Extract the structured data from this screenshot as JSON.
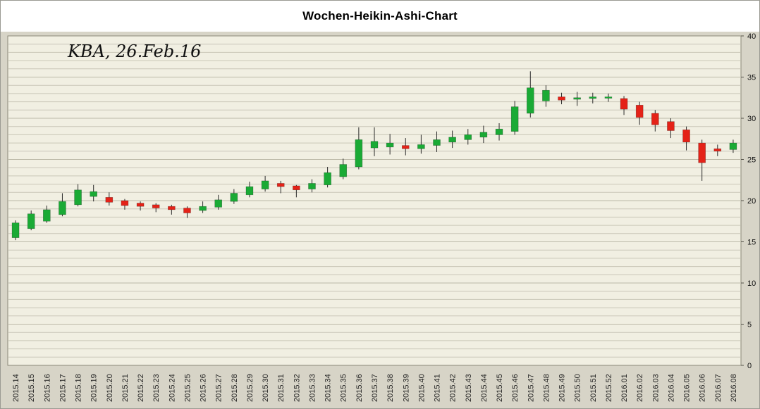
{
  "chart": {
    "title": "Wochen-Heikin-Ashi-Chart",
    "annotation": "KBA, 26.Feb.16"
  },
  "chart_data": {
    "type": "candlestick",
    "subtype": "heikin-ashi-weekly",
    "title": "Wochen-Heikin-Ashi-Chart",
    "annotation": "KBA, 26.Feb.16",
    "xlabel": "",
    "ylabel": "",
    "ylim": [
      0,
      40
    ],
    "y_ticks": [
      0,
      5,
      10,
      15,
      20,
      25,
      30,
      35,
      40
    ],
    "y_minor_step": 1,
    "grid": "horizontal",
    "legend_position": "none",
    "up_color": "#1aaa35",
    "down_color": "#e42218",
    "wick_color": "#2b2b2b",
    "plot_bg": "#f1efe2",
    "outer_bg": "#d7d4c7",
    "grid_color": "#c9c6b7",
    "grid_major_color": "#bcb9a8",
    "categories": [
      "2015.14",
      "2015.15",
      "2015.16",
      "2015.17",
      "2015.18",
      "2015.19",
      "2015.20",
      "2015.21",
      "2015.22",
      "2015.23",
      "2015.24",
      "2015.25",
      "2015.26",
      "2015.27",
      "2015.28",
      "2015.29",
      "2015.30",
      "2015.31",
      "2015.32",
      "2015.33",
      "2015.34",
      "2015.35",
      "2015.36",
      "2015.37",
      "2015.38",
      "2015.39",
      "2015.40",
      "2015.41",
      "2015.42",
      "2015.43",
      "2015.44",
      "2015.45",
      "2015.46",
      "2015.47",
      "2015.48",
      "2015.49",
      "2015.50",
      "2015.51",
      "2015.52",
      "2016.01",
      "2016.02",
      "2016.03",
      "2016.04",
      "2016.05",
      "2016.06",
      "2016.07",
      "2016.08"
    ],
    "candles_ohlc_format": [
      "open",
      "high",
      "low",
      "close"
    ],
    "candles": [
      [
        15.5,
        17.6,
        15.2,
        17.3
      ],
      [
        16.6,
        18.8,
        16.4,
        18.4
      ],
      [
        17.5,
        19.4,
        17.3,
        18.9
      ],
      [
        18.3,
        20.9,
        18.1,
        19.9
      ],
      [
        19.5,
        22.0,
        19.3,
        21.3
      ],
      [
        20.5,
        21.9,
        19.9,
        21.1
      ],
      [
        20.4,
        21.0,
        19.4,
        19.8
      ],
      [
        20.0,
        20.2,
        18.9,
        19.4
      ],
      [
        19.7,
        19.9,
        18.8,
        19.3
      ],
      [
        19.5,
        19.7,
        18.6,
        19.1
      ],
      [
        19.3,
        19.5,
        18.3,
        18.9
      ],
      [
        19.1,
        19.3,
        17.9,
        18.5
      ],
      [
        18.8,
        19.9,
        18.5,
        19.3
      ],
      [
        19.2,
        20.7,
        18.9,
        20.1
      ],
      [
        19.9,
        21.4,
        19.6,
        20.9
      ],
      [
        20.7,
        22.3,
        20.4,
        21.7
      ],
      [
        21.4,
        23.0,
        21.1,
        22.4
      ],
      [
        22.1,
        22.4,
        20.9,
        21.7
      ],
      [
        21.8,
        21.9,
        20.4,
        21.3
      ],
      [
        21.4,
        22.6,
        21.0,
        22.1
      ],
      [
        21.9,
        24.1,
        21.6,
        23.4
      ],
      [
        22.9,
        25.1,
        22.6,
        24.4
      ],
      [
        24.1,
        28.9,
        23.8,
        27.4
      ],
      [
        26.4,
        28.9,
        25.4,
        27.2
      ],
      [
        26.5,
        28.1,
        25.6,
        27.0
      ],
      [
        26.7,
        27.6,
        25.5,
        26.3
      ],
      [
        26.3,
        28.0,
        25.7,
        26.8
      ],
      [
        26.7,
        28.4,
        25.9,
        27.4
      ],
      [
        27.1,
        28.5,
        26.4,
        27.7
      ],
      [
        27.4,
        28.7,
        26.8,
        28.0
      ],
      [
        27.7,
        29.1,
        27.0,
        28.3
      ],
      [
        28.0,
        29.4,
        27.3,
        28.7
      ],
      [
        28.4,
        32.1,
        28.0,
        31.4
      ],
      [
        30.6,
        35.7,
        30.1,
        33.7
      ],
      [
        32.1,
        34.0,
        31.4,
        33.4
      ],
      [
        32.6,
        33.1,
        31.7,
        32.2
      ],
      [
        32.3,
        33.2,
        31.5,
        32.5
      ],
      [
        32.4,
        33.1,
        31.8,
        32.6
      ],
      [
        32.5,
        33.0,
        32.0,
        32.6
      ],
      [
        32.4,
        32.7,
        30.4,
        31.1
      ],
      [
        31.6,
        32.0,
        29.2,
        30.1
      ],
      [
        30.6,
        31.0,
        28.4,
        29.2
      ],
      [
        29.6,
        30.0,
        27.6,
        28.5
      ],
      [
        28.6,
        29.0,
        26.1,
        27.1
      ],
      [
        27.0,
        27.4,
        22.4,
        24.6
      ],
      [
        26.3,
        26.8,
        25.4,
        26.0
      ],
      [
        26.2,
        27.4,
        25.8,
        27.0
      ]
    ]
  }
}
